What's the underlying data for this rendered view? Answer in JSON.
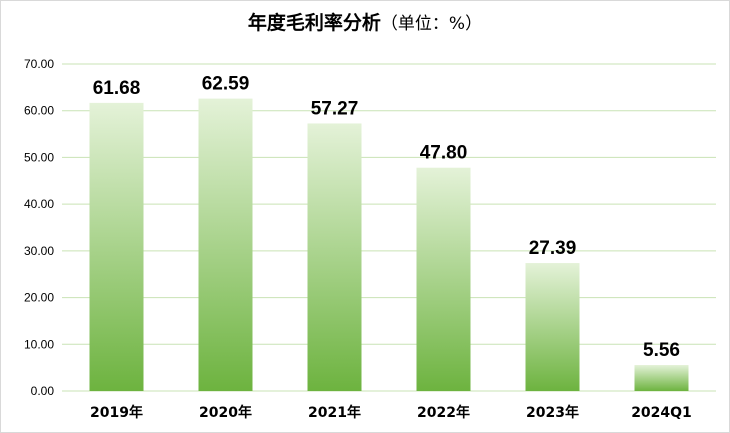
{
  "chart_data": {
    "type": "bar",
    "title": "年度毛利率分析",
    "unit_label": "（单位：%）",
    "categories": [
      "2019年",
      "2020年",
      "2021年",
      "2022年",
      "2023年",
      "2024Q1"
    ],
    "values": [
      61.68,
      62.59,
      57.27,
      47.8,
      27.39,
      5.56
    ],
    "data_labels": [
      "61.68",
      "62.59",
      "57.27",
      "47.80",
      "27.39",
      "5.56"
    ],
    "yticks": [
      "0.00",
      "10.00",
      "20.00",
      "30.00",
      "40.00",
      "50.00",
      "60.00",
      "70.00"
    ],
    "ylim": [
      0,
      70
    ],
    "grid": true,
    "legend": "none",
    "colors": {
      "bar_top": "#e4f2d8",
      "bar_bottom": "#6db33f",
      "grid": "#c9e3b5"
    }
  }
}
